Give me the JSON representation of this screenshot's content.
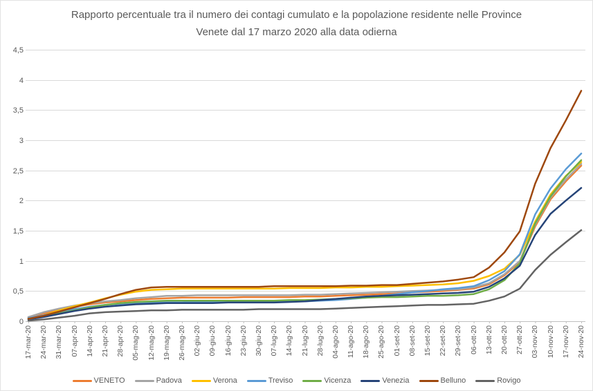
{
  "chart_data": {
    "type": "line",
    "title": "Rapporto percentuale tra il numero dei contagi cumulato e la popolazione residente nelle Province Venete dal 17 marzo 2020 alla data odierna",
    "xlabel": "",
    "ylabel": "",
    "ylim": [
      0,
      4.5
    ],
    "grid": "horizontal",
    "legend_position": "bottom",
    "number_format": "italian-comma",
    "y_ticks": [
      {
        "v": 0,
        "label": "0"
      },
      {
        "v": 0.5,
        "label": "0,5"
      },
      {
        "v": 1,
        "label": "1"
      },
      {
        "v": 1.5,
        "label": "1,5"
      },
      {
        "v": 2,
        "label": "2"
      },
      {
        "v": 2.5,
        "label": "2,5"
      },
      {
        "v": 3,
        "label": "3"
      },
      {
        "v": 3.5,
        "label": "3,5"
      },
      {
        "v": 4,
        "label": "4"
      },
      {
        "v": 4.5,
        "label": "4,5"
      }
    ],
    "x_tick_labels": [
      "17-mar-20",
      "24-mar-20",
      "31-mar-20",
      "07-apr-20",
      "14-apr-20",
      "21-apr-20",
      "28-apr-20",
      "05-mag-20",
      "12-mag-20",
      "19-mag-20",
      "26-mag-20",
      "02-giu-20",
      "09-giu-20",
      "16-giu-20",
      "23-giu-20",
      "30-giu-20",
      "07-lug-20",
      "14-lug-20",
      "21-lug-20",
      "28-lug-20",
      "04-ago-20",
      "11-ago-20",
      "18-ago-20",
      "25-ago-20",
      "01-set-20",
      "08-set-20",
      "15-set-20",
      "22-set-20",
      "29-set-20",
      "06-ott-20",
      "13-ott-20",
      "20-ott-20",
      "27-ott-20",
      "03-nov-20",
      "10-nov-20",
      "17-nov-20",
      "24-nov-20"
    ],
    "series": [
      {
        "name": "VENETO",
        "color": "#ED7D31",
        "values": [
          0.06,
          0.13,
          0.19,
          0.24,
          0.28,
          0.31,
          0.33,
          0.35,
          0.37,
          0.38,
          0.39,
          0.39,
          0.39,
          0.39,
          0.4,
          0.4,
          0.4,
          0.4,
          0.41,
          0.41,
          0.42,
          0.43,
          0.44,
          0.45,
          0.46,
          0.48,
          0.49,
          0.5,
          0.52,
          0.54,
          0.61,
          0.76,
          0.98,
          1.57,
          2.02,
          2.32,
          2.58
        ]
      },
      {
        "name": "Padova",
        "color": "#A5A5A5",
        "values": [
          0.07,
          0.15,
          0.21,
          0.26,
          0.3,
          0.33,
          0.35,
          0.38,
          0.4,
          0.42,
          0.42,
          0.43,
          0.43,
          0.43,
          0.43,
          0.43,
          0.43,
          0.43,
          0.44,
          0.44,
          0.45,
          0.46,
          0.47,
          0.48,
          0.49,
          0.5,
          0.51,
          0.52,
          0.53,
          0.56,
          0.63,
          0.78,
          1.0,
          1.6,
          2.05,
          2.35,
          2.61
        ]
      },
      {
        "name": "Verona",
        "color": "#FFC000",
        "values": [
          0.04,
          0.1,
          0.18,
          0.25,
          0.31,
          0.38,
          0.44,
          0.49,
          0.52,
          0.53,
          0.54,
          0.54,
          0.54,
          0.54,
          0.54,
          0.54,
          0.54,
          0.55,
          0.55,
          0.55,
          0.56,
          0.56,
          0.57,
          0.57,
          0.58,
          0.59,
          0.6,
          0.61,
          0.63,
          0.67,
          0.75,
          0.87,
          1.1,
          1.65,
          2.1,
          2.41,
          2.64
        ]
      },
      {
        "name": "Treviso",
        "color": "#5B9BD5",
        "values": [
          0.05,
          0.1,
          0.15,
          0.2,
          0.24,
          0.27,
          0.29,
          0.3,
          0.31,
          0.31,
          0.31,
          0.32,
          0.32,
          0.32,
          0.32,
          0.32,
          0.32,
          0.33,
          0.33,
          0.34,
          0.35,
          0.37,
          0.39,
          0.42,
          0.45,
          0.48,
          0.5,
          0.53,
          0.55,
          0.58,
          0.68,
          0.83,
          1.11,
          1.77,
          2.2,
          2.52,
          2.78
        ]
      },
      {
        "name": "Vicenza",
        "color": "#70AD47",
        "values": [
          0.04,
          0.08,
          0.13,
          0.18,
          0.23,
          0.27,
          0.3,
          0.32,
          0.33,
          0.34,
          0.34,
          0.34,
          0.34,
          0.34,
          0.34,
          0.34,
          0.34,
          0.35,
          0.35,
          0.36,
          0.37,
          0.38,
          0.39,
          0.4,
          0.4,
          0.41,
          0.42,
          0.42,
          0.43,
          0.45,
          0.53,
          0.68,
          0.96,
          1.62,
          2.07,
          2.4,
          2.67
        ]
      },
      {
        "name": "Venezia",
        "color": "#264478",
        "values": [
          0.03,
          0.07,
          0.12,
          0.17,
          0.21,
          0.24,
          0.26,
          0.28,
          0.29,
          0.3,
          0.3,
          0.3,
          0.3,
          0.31,
          0.31,
          0.31,
          0.31,
          0.32,
          0.33,
          0.35,
          0.37,
          0.39,
          0.41,
          0.42,
          0.43,
          0.44,
          0.45,
          0.46,
          0.47,
          0.49,
          0.57,
          0.71,
          0.92,
          1.43,
          1.78,
          2.0,
          2.21
        ]
      },
      {
        "name": "Belluno",
        "color": "#9E480E",
        "values": [
          0.04,
          0.09,
          0.16,
          0.23,
          0.3,
          0.37,
          0.45,
          0.52,
          0.56,
          0.57,
          0.57,
          0.57,
          0.57,
          0.57,
          0.57,
          0.57,
          0.58,
          0.58,
          0.58,
          0.58,
          0.58,
          0.59,
          0.59,
          0.6,
          0.6,
          0.62,
          0.64,
          0.66,
          0.69,
          0.73,
          0.89,
          1.14,
          1.49,
          2.28,
          2.87,
          3.33,
          3.82
        ]
      },
      {
        "name": "Rovigo",
        "color": "#636363",
        "values": [
          0.01,
          0.03,
          0.06,
          0.09,
          0.13,
          0.15,
          0.16,
          0.17,
          0.18,
          0.18,
          0.19,
          0.19,
          0.19,
          0.19,
          0.19,
          0.2,
          0.2,
          0.2,
          0.2,
          0.2,
          0.21,
          0.22,
          0.23,
          0.24,
          0.25,
          0.26,
          0.27,
          0.27,
          0.28,
          0.29,
          0.34,
          0.41,
          0.54,
          0.85,
          1.1,
          1.31,
          1.51
        ]
      }
    ],
    "colors": {
      "text": "#595959",
      "grid": "#D9D9D9",
      "axis": "#BFBFBF"
    }
  }
}
